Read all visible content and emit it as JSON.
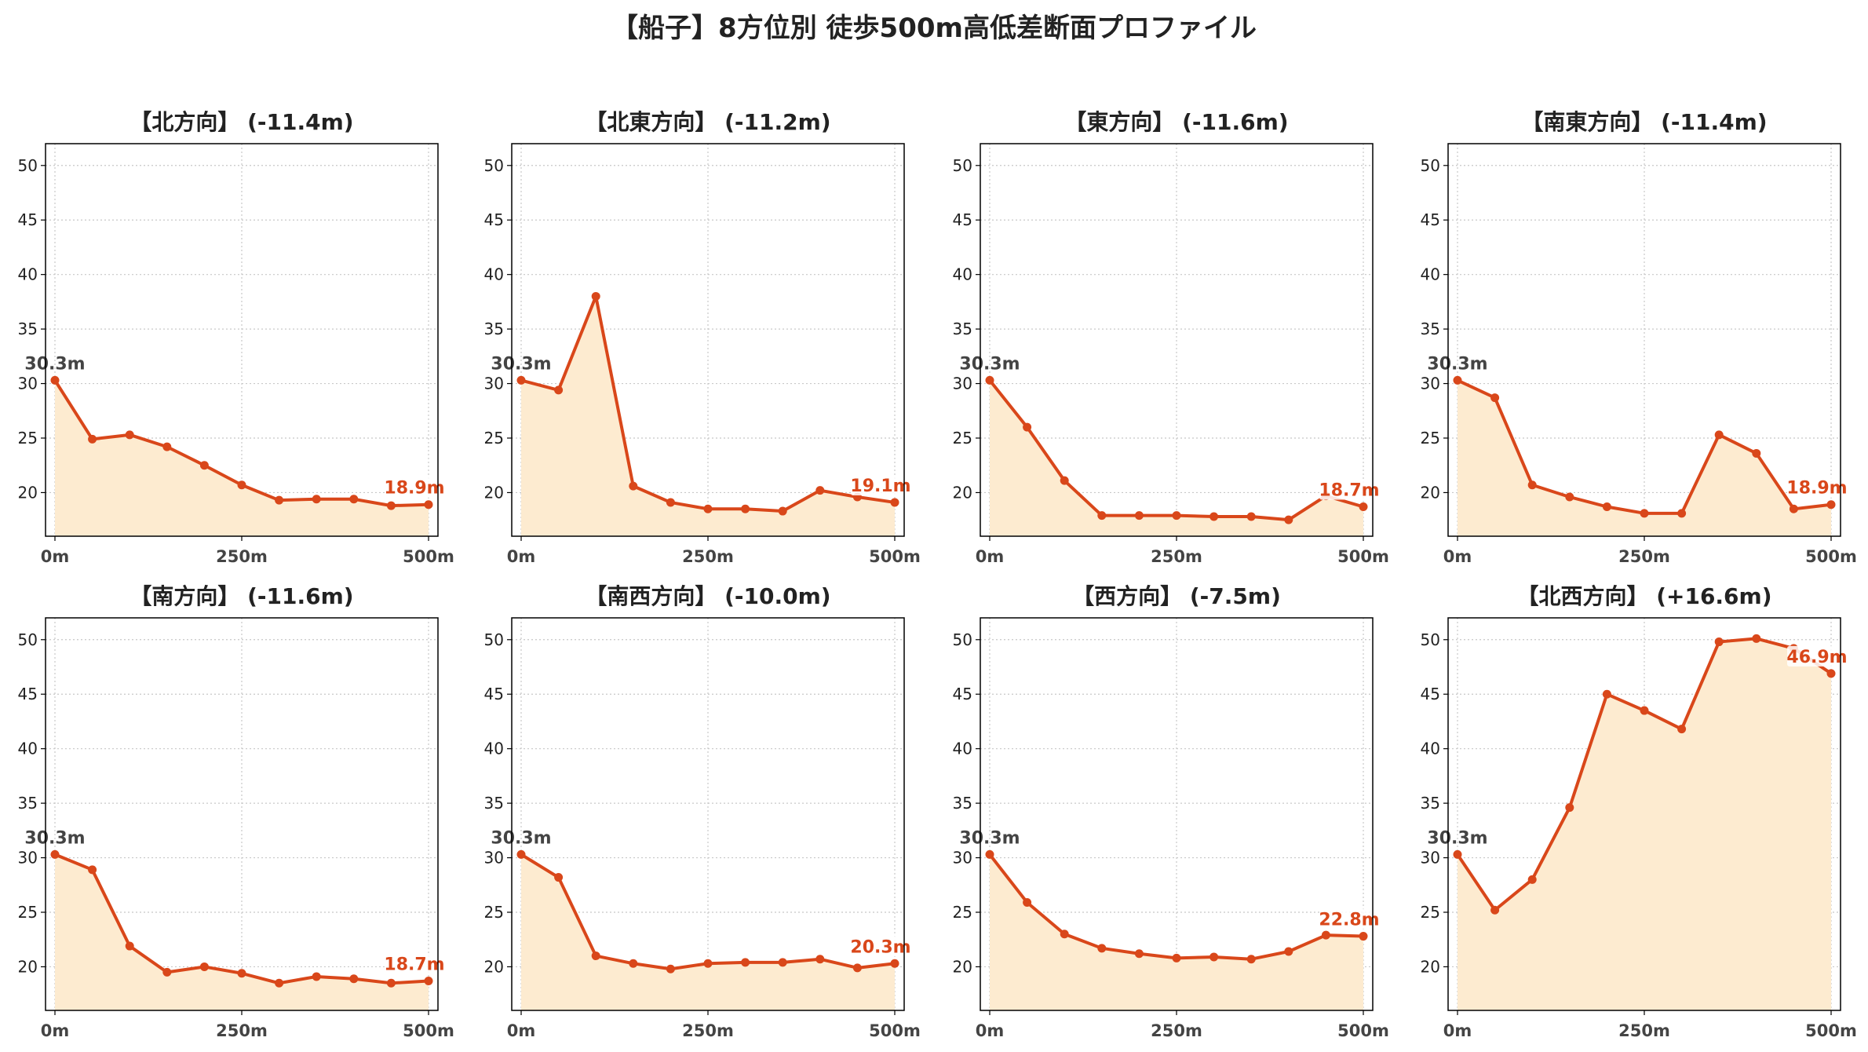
{
  "title": "【船子】8方位別 徒歩500m高低差断面プロファイル",
  "colors": {
    "line": "#d9471a",
    "fill": "#fdebd0",
    "grid": "#c8c8c8",
    "axis": "#000000"
  },
  "chart_data": [
    {
      "type": "area",
      "title": "【北方向】 (-11.4m)",
      "x": [
        0,
        50,
        100,
        150,
        200,
        250,
        300,
        350,
        400,
        450,
        500
      ],
      "values": [
        30.3,
        24.9,
        25.3,
        24.2,
        22.5,
        20.7,
        19.3,
        19.4,
        19.4,
        18.8,
        18.9
      ],
      "xticks": [
        "0m",
        "250m",
        "500m"
      ],
      "yticks": [
        "20",
        "25",
        "30",
        "35",
        "40",
        "45",
        "50"
      ],
      "start_label": "30.3m",
      "end_label": "18.9m",
      "ylim": [
        16,
        52
      ],
      "xlim": [
        0,
        500
      ],
      "grid": true
    },
    {
      "type": "area",
      "title": "【北東方向】 (-11.2m)",
      "x": [
        0,
        50,
        100,
        150,
        200,
        250,
        300,
        350,
        400,
        450,
        500
      ],
      "values": [
        30.3,
        29.4,
        38.0,
        20.6,
        19.1,
        18.5,
        18.5,
        18.3,
        20.2,
        19.6,
        19.1
      ],
      "xticks": [
        "0m",
        "250m",
        "500m"
      ],
      "yticks": [
        "20",
        "25",
        "30",
        "35",
        "40",
        "45",
        "50"
      ],
      "start_label": "30.3m",
      "end_label": "19.1m",
      "ylim": [
        16,
        52
      ],
      "xlim": [
        0,
        500
      ],
      "grid": true
    },
    {
      "type": "area",
      "title": "【東方向】 (-11.6m)",
      "x": [
        0,
        50,
        100,
        150,
        200,
        250,
        300,
        350,
        400,
        450,
        500
      ],
      "values": [
        30.3,
        26.0,
        21.1,
        17.9,
        17.9,
        17.9,
        17.8,
        17.8,
        17.5,
        19.7,
        18.7
      ],
      "xticks": [
        "0m",
        "250m",
        "500m"
      ],
      "yticks": [
        "20",
        "25",
        "30",
        "35",
        "40",
        "45",
        "50"
      ],
      "start_label": "30.3m",
      "end_label": "18.7m",
      "ylim": [
        16,
        52
      ],
      "xlim": [
        0,
        500
      ],
      "grid": true
    },
    {
      "type": "area",
      "title": "【南東方向】 (-11.4m)",
      "x": [
        0,
        50,
        100,
        150,
        200,
        250,
        300,
        350,
        400,
        450,
        500
      ],
      "values": [
        30.3,
        28.7,
        20.7,
        19.6,
        18.7,
        18.1,
        18.1,
        25.3,
        23.6,
        18.5,
        18.9
      ],
      "xticks": [
        "0m",
        "250m",
        "500m"
      ],
      "yticks": [
        "20",
        "25",
        "30",
        "35",
        "40",
        "45",
        "50"
      ],
      "start_label": "30.3m",
      "end_label": "18.9m",
      "ylim": [
        16,
        52
      ],
      "xlim": [
        0,
        500
      ],
      "grid": true
    },
    {
      "type": "area",
      "title": "【南方向】 (-11.6m)",
      "x": [
        0,
        50,
        100,
        150,
        200,
        250,
        300,
        350,
        400,
        450,
        500
      ],
      "values": [
        30.3,
        28.9,
        21.9,
        19.5,
        20.0,
        19.4,
        18.5,
        19.1,
        18.9,
        18.5,
        18.7
      ],
      "xticks": [
        "0m",
        "250m",
        "500m"
      ],
      "yticks": [
        "20",
        "25",
        "30",
        "35",
        "40",
        "45",
        "50"
      ],
      "start_label": "30.3m",
      "end_label": "18.7m",
      "ylim": [
        16,
        52
      ],
      "xlim": [
        0,
        500
      ],
      "grid": true
    },
    {
      "type": "area",
      "title": "【南西方向】 (-10.0m)",
      "x": [
        0,
        50,
        100,
        150,
        200,
        250,
        300,
        350,
        400,
        450,
        500
      ],
      "values": [
        30.3,
        28.2,
        21.0,
        20.3,
        19.8,
        20.3,
        20.4,
        20.4,
        20.7,
        19.9,
        20.3
      ],
      "xticks": [
        "0m",
        "250m",
        "500m"
      ],
      "yticks": [
        "20",
        "25",
        "30",
        "35",
        "40",
        "45",
        "50"
      ],
      "start_label": "30.3m",
      "end_label": "20.3m",
      "ylim": [
        16,
        52
      ],
      "xlim": [
        0,
        500
      ],
      "grid": true
    },
    {
      "type": "area",
      "title": "【西方向】 (-7.5m)",
      "x": [
        0,
        50,
        100,
        150,
        200,
        250,
        300,
        350,
        400,
        450,
        500
      ],
      "values": [
        30.3,
        25.9,
        23.0,
        21.7,
        21.2,
        20.8,
        20.9,
        20.7,
        21.4,
        22.9,
        22.8
      ],
      "xticks": [
        "0m",
        "250m",
        "500m"
      ],
      "yticks": [
        "20",
        "25",
        "30",
        "35",
        "40",
        "45",
        "50"
      ],
      "start_label": "30.3m",
      "end_label": "22.8m",
      "ylim": [
        16,
        52
      ],
      "xlim": [
        0,
        500
      ],
      "grid": true
    },
    {
      "type": "area",
      "title": "【北西方向】 (+16.6m)",
      "x": [
        0,
        50,
        100,
        150,
        200,
        250,
        300,
        350,
        400,
        450,
        500
      ],
      "values": [
        30.3,
        25.2,
        28.0,
        34.6,
        45.0,
        43.5,
        41.8,
        49.8,
        50.1,
        49.2,
        46.9
      ],
      "xticks": [
        "0m",
        "250m",
        "500m"
      ],
      "yticks": [
        "20",
        "25",
        "30",
        "35",
        "40",
        "45",
        "50"
      ],
      "start_label": "30.3m",
      "end_label": "46.9m",
      "ylim": [
        16,
        52
      ],
      "xlim": [
        0,
        500
      ],
      "grid": true
    }
  ]
}
